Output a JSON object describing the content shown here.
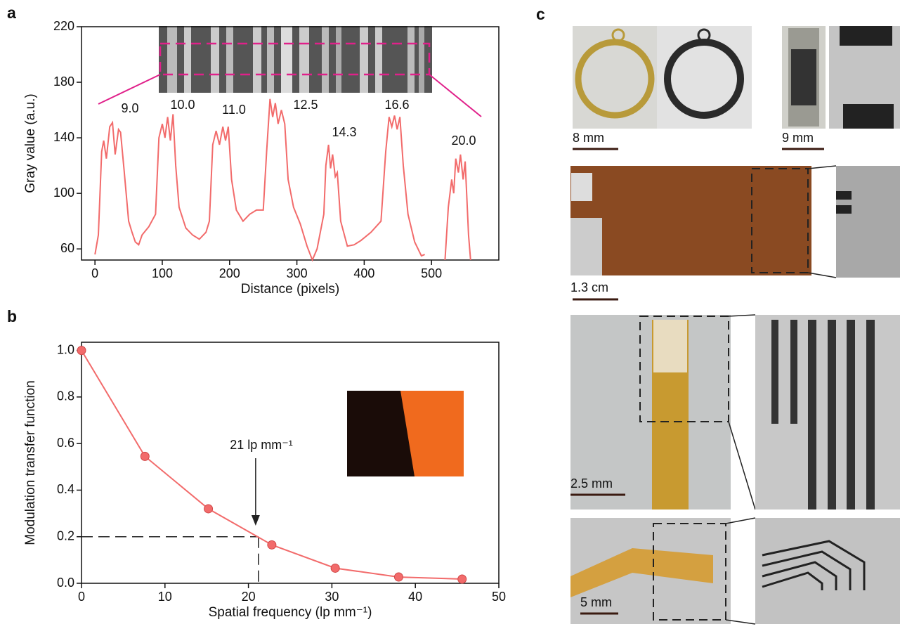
{
  "chart_data": [
    {
      "type": "line",
      "panel": "a",
      "xlabel": "Distance (pixels)",
      "ylabel": "Gray value (a.u.)",
      "xlim": [
        -20,
        600
      ],
      "xticks": [
        0,
        100,
        200,
        300,
        400,
        500
      ],
      "ylim": [
        52,
        220
      ],
      "yticks": [
        60,
        100,
        140,
        180,
        220
      ],
      "color": "#f26b6b",
      "markers": false,
      "x": [
        0,
        5,
        10,
        13,
        17,
        22,
        26,
        30,
        35,
        38,
        43,
        50,
        55,
        60,
        65,
        70,
        80,
        90,
        95,
        100,
        104,
        108,
        112,
        116,
        120,
        125,
        135,
        145,
        155,
        165,
        170,
        175,
        180,
        185,
        190,
        194,
        198,
        203,
        210,
        220,
        230,
        240,
        250,
        255,
        260,
        264,
        268,
        272,
        277,
        282,
        287,
        295,
        305,
        315,
        323,
        330,
        340,
        343,
        347,
        350,
        353,
        357,
        360,
        365,
        375,
        385,
        395,
        410,
        425,
        432,
        437,
        441,
        445,
        449,
        453,
        458,
        465,
        475,
        485,
        490,
        505,
        520,
        525,
        530,
        533,
        536,
        540,
        543,
        547,
        550,
        555,
        558
      ],
      "values": [
        56,
        70,
        130,
        138,
        125,
        148,
        151,
        128,
        146,
        144,
        118,
        80,
        72,
        65,
        63,
        70,
        76,
        85,
        140,
        150,
        140,
        155,
        138,
        157,
        120,
        90,
        75,
        70,
        67,
        72,
        80,
        135,
        145,
        135,
        148,
        138,
        148,
        110,
        88,
        80,
        85,
        88,
        88,
        130,
        168,
        155,
        165,
        150,
        160,
        150,
        110,
        90,
        78,
        62,
        52,
        60,
        85,
        120,
        135,
        118,
        128,
        112,
        115,
        80,
        62,
        63,
        66,
        72,
        80,
        130,
        155,
        148,
        156,
        146,
        155,
        120,
        85,
        65,
        55,
        56,
        null,
        52,
        90,
        110,
        100,
        125,
        115,
        128,
        110,
        123,
        70,
        52
      ],
      "annotations": [
        "9.0",
        "10.0",
        "11.0",
        "12.5",
        "14.3",
        "16.6",
        "20.0"
      ]
    },
    {
      "type": "line",
      "panel": "b",
      "xlabel": "Spatial frequency (lp mm⁻¹)",
      "ylabel": "Modulation transfer function",
      "xlim": [
        0,
        50
      ],
      "xticks": [
        0,
        10,
        20,
        30,
        40,
        50
      ],
      "ylim": [
        0,
        1.035
      ],
      "yticks": [
        {
          "value": 0,
          "label": "0.0"
        },
        0.2,
        0.4,
        0.6,
        0.8,
        {
          "value": 1,
          "label": "1.0"
        }
      ],
      "color": "#f26b6b",
      "markers": true,
      "x": [
        0,
        7.6,
        15.2,
        22.8,
        30.4,
        38,
        45.6
      ],
      "values": [
        1.0,
        0.545,
        0.32,
        0.165,
        0.065,
        0.027,
        0.018
      ],
      "reference": {
        "x": 21.2,
        "y": 0.2
      },
      "annotations": [
        "21 lp mm⁻¹"
      ]
    }
  ],
  "panel_c": {
    "label": "c",
    "scale_bars": [
      "8 mm",
      "9 mm",
      "1.3 cm",
      "2.5 mm",
      "5 mm"
    ]
  }
}
